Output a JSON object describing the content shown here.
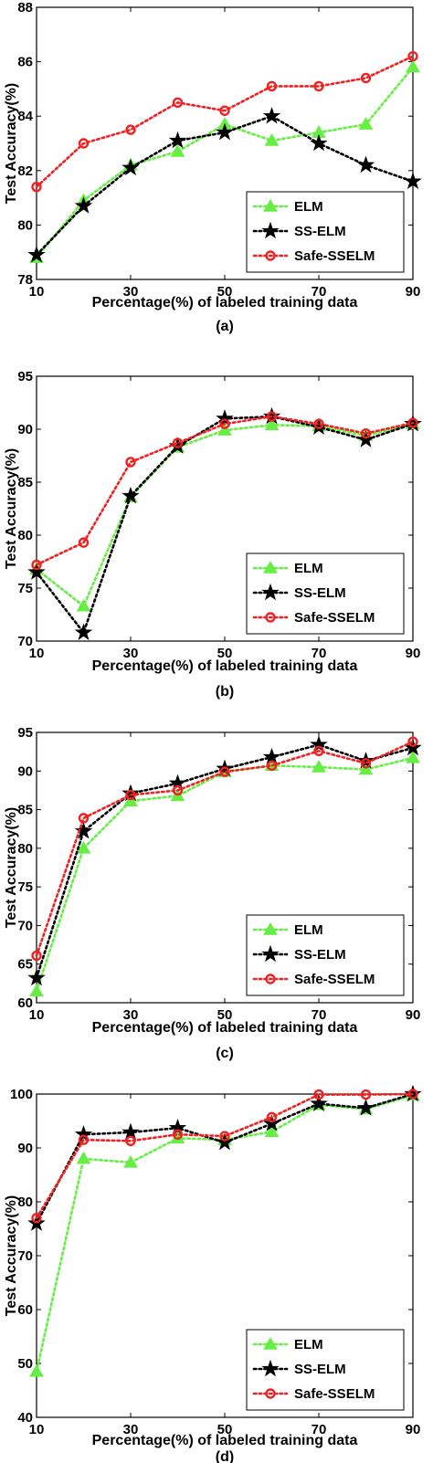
{
  "chart_data": [
    {
      "type": "line",
      "caption": "(a)",
      "xlabel": "Percentage(%) of labeled training data",
      "ylabel": "Test Accuracy(%)",
      "xlim": [
        10,
        90
      ],
      "ylim": [
        78,
        88
      ],
      "xticks": [
        10,
        30,
        50,
        70,
        90
      ],
      "yticks": [
        78,
        80,
        82,
        84,
        86,
        88
      ],
      "legend_position": "bottom-right",
      "x": [
        10,
        20,
        30,
        40,
        50,
        60,
        70,
        80,
        90
      ],
      "series": [
        {
          "name": "ELM",
          "marker": "triangle",
          "color": "#66ee44",
          "values": [
            78.8,
            80.9,
            82.2,
            82.7,
            83.7,
            83.1,
            83.4,
            83.7,
            85.8
          ]
        },
        {
          "name": "SS-ELM",
          "marker": "star",
          "color": "#000000",
          "values": [
            78.9,
            80.7,
            82.1,
            83.1,
            83.4,
            84.0,
            83.0,
            82.2,
            81.6
          ]
        },
        {
          "name": "Safe-SSELM",
          "marker": "circle",
          "color": "#ee2222",
          "values": [
            81.4,
            83.0,
            83.5,
            84.5,
            84.2,
            85.1,
            85.1,
            85.4,
            86.2
          ]
        }
      ]
    },
    {
      "type": "line",
      "caption": "(b)",
      "xlabel": "Percentage(%) of labeled training data",
      "ylabel": "Test Accuracy(%)",
      "xlim": [
        10,
        90
      ],
      "ylim": [
        70,
        95
      ],
      "xticks": [
        10,
        30,
        50,
        70,
        90
      ],
      "yticks": [
        70,
        75,
        80,
        85,
        90,
        95
      ],
      "legend_position": "bottom-right",
      "x": [
        10,
        20,
        30,
        40,
        50,
        60,
        70,
        80,
        90
      ],
      "series": [
        {
          "name": "ELM",
          "marker": "triangle",
          "color": "#66ee44",
          "values": [
            76.8,
            73.3,
            83.6,
            88.3,
            89.9,
            90.4,
            90.3,
            89.4,
            90.5
          ]
        },
        {
          "name": "SS-ELM",
          "marker": "star",
          "color": "#000000",
          "values": [
            76.5,
            70.8,
            83.7,
            88.4,
            91.0,
            91.2,
            90.2,
            89.0,
            90.5
          ]
        },
        {
          "name": "Safe-SSELM",
          "marker": "circle",
          "color": "#ee2222",
          "values": [
            77.2,
            79.3,
            86.9,
            88.7,
            90.5,
            91.2,
            90.5,
            89.6,
            90.6
          ]
        }
      ]
    },
    {
      "type": "line",
      "caption": "(c)",
      "xlabel": "Percentage(%) of labeled training data",
      "ylabel": "Test Accuracy(%)",
      "xlim": [
        10,
        90
      ],
      "ylim": [
        60,
        95
      ],
      "xticks": [
        10,
        30,
        50,
        70,
        90
      ],
      "yticks": [
        60,
        65,
        70,
        75,
        80,
        85,
        90,
        95
      ],
      "legend_position": "bottom-right",
      "x": [
        10,
        20,
        30,
        40,
        50,
        60,
        70,
        80,
        90
      ],
      "series": [
        {
          "name": "ELM",
          "marker": "triangle",
          "color": "#66ee44",
          "values": [
            61.5,
            80.0,
            86.1,
            86.8,
            89.9,
            90.7,
            90.5,
            90.2,
            91.7
          ]
        },
        {
          "name": "SS-ELM",
          "marker": "star",
          "color": "#000000",
          "values": [
            63.2,
            82.2,
            87.1,
            88.4,
            90.3,
            91.8,
            93.4,
            91.3,
            93.0
          ]
        },
        {
          "name": "Safe-SSELM",
          "marker": "circle",
          "color": "#ee2222",
          "values": [
            66.1,
            83.9,
            86.9,
            87.5,
            89.9,
            90.7,
            92.6,
            91.0,
            93.8
          ]
        }
      ]
    },
    {
      "type": "line",
      "caption": "(d)",
      "xlabel": "Percentage(%) of labeled training data",
      "ylabel": "Test Accuracy(%)",
      "xlim": [
        10,
        90
      ],
      "ylim": [
        40,
        100
      ],
      "xticks": [
        10,
        30,
        50,
        70,
        90
      ],
      "yticks": [
        40,
        50,
        60,
        70,
        80,
        90,
        100
      ],
      "legend_position": "bottom-right",
      "x": [
        10,
        20,
        30,
        40,
        50,
        60,
        70,
        80,
        90
      ],
      "series": [
        {
          "name": "ELM",
          "marker": "triangle",
          "color": "#66ee44",
          "values": [
            48.5,
            88.0,
            87.3,
            91.8,
            91.5,
            93.0,
            98.0,
            97.2,
            99.8
          ]
        },
        {
          "name": "SS-ELM",
          "marker": "star",
          "color": "#000000",
          "values": [
            76.0,
            92.5,
            92.9,
            93.7,
            91.0,
            94.5,
            98.2,
            97.4,
            100.0
          ]
        },
        {
          "name": "Safe-SSELM",
          "marker": "circle",
          "color": "#ee2222",
          "values": [
            77.0,
            91.5,
            91.3,
            92.5,
            92.2,
            95.7,
            99.9,
            99.9,
            100.0
          ]
        }
      ]
    }
  ]
}
